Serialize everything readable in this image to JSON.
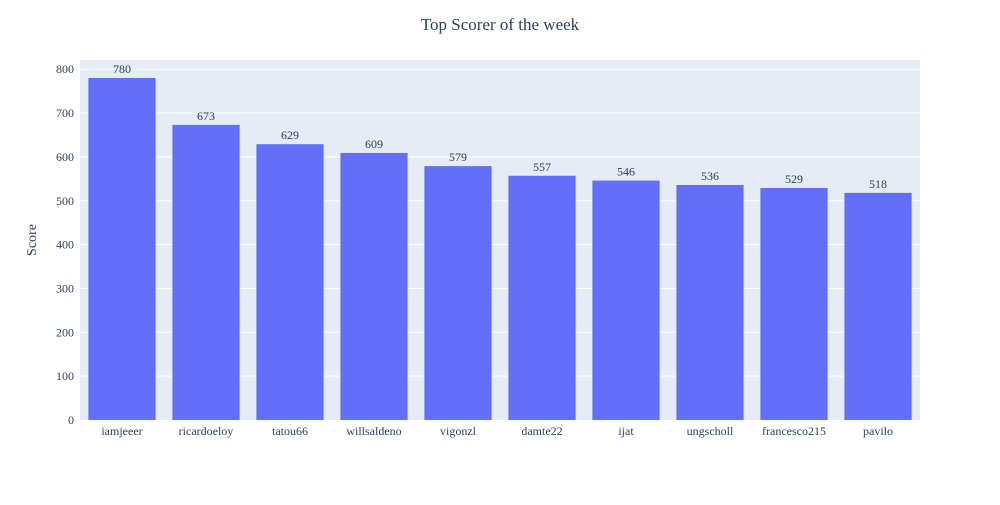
{
  "chart_data": {
    "type": "bar",
    "title": "Top Scorer of the week",
    "xlabel": "",
    "ylabel": "Score",
    "categories": [
      "iamjeeer",
      "ricardoeloy",
      "tatou66",
      "willsaldeno",
      "vigonzl",
      "damte22",
      "ijat",
      "ungscholl",
      "francesco215",
      "pavilo"
    ],
    "values": [
      780,
      673,
      629,
      609,
      579,
      557,
      546,
      536,
      529,
      518
    ],
    "ylim": [
      0,
      821
    ],
    "yticks": [
      0,
      100,
      200,
      300,
      400,
      500,
      600,
      700,
      800
    ],
    "grid": true,
    "legend": "none",
    "colors": {
      "bar": "#636efa",
      "plot_bg": "#e5ecf6",
      "grid": "#ffffff",
      "text": "#2a3f5f"
    }
  }
}
